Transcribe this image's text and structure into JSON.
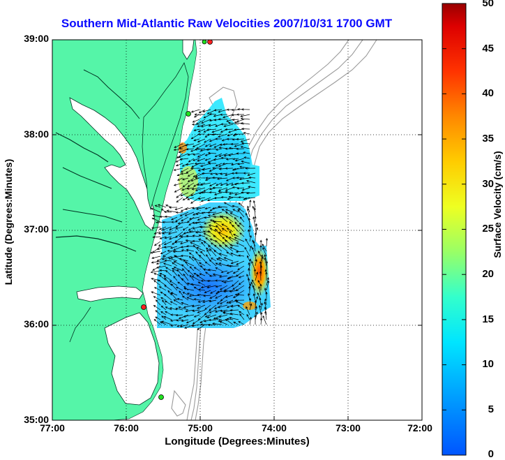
{
  "title": "Southern Mid-Atlantic Raw Velocities 2007/10/31 1700 GMT",
  "axes": {
    "xlabel": "Longitude (Degrees:Minutes)",
    "ylabel": "Latitude (Degrees:Minutes)",
    "x_ticks": [
      "77:00",
      "76:00",
      "75:00",
      "74:00",
      "73:00",
      "72:00"
    ],
    "y_ticks": [
      "39:00",
      "38:00",
      "37:00",
      "36:00",
      "35:00"
    ],
    "grid": "dotted"
  },
  "colorbar": {
    "label": "Surface Velocity (cm/s)",
    "ticks": [
      "50",
      "45",
      "40",
      "35",
      "30",
      "25",
      "20",
      "15",
      "10",
      "5",
      "0"
    ],
    "range": [
      0,
      50
    ],
    "colormap": "jet"
  },
  "colors": {
    "land": "#55f5a8",
    "title": "#0a0aff",
    "bathymetry": "#9a9a9a",
    "station": "#ff2020",
    "station_alt": "#20e020"
  }
}
